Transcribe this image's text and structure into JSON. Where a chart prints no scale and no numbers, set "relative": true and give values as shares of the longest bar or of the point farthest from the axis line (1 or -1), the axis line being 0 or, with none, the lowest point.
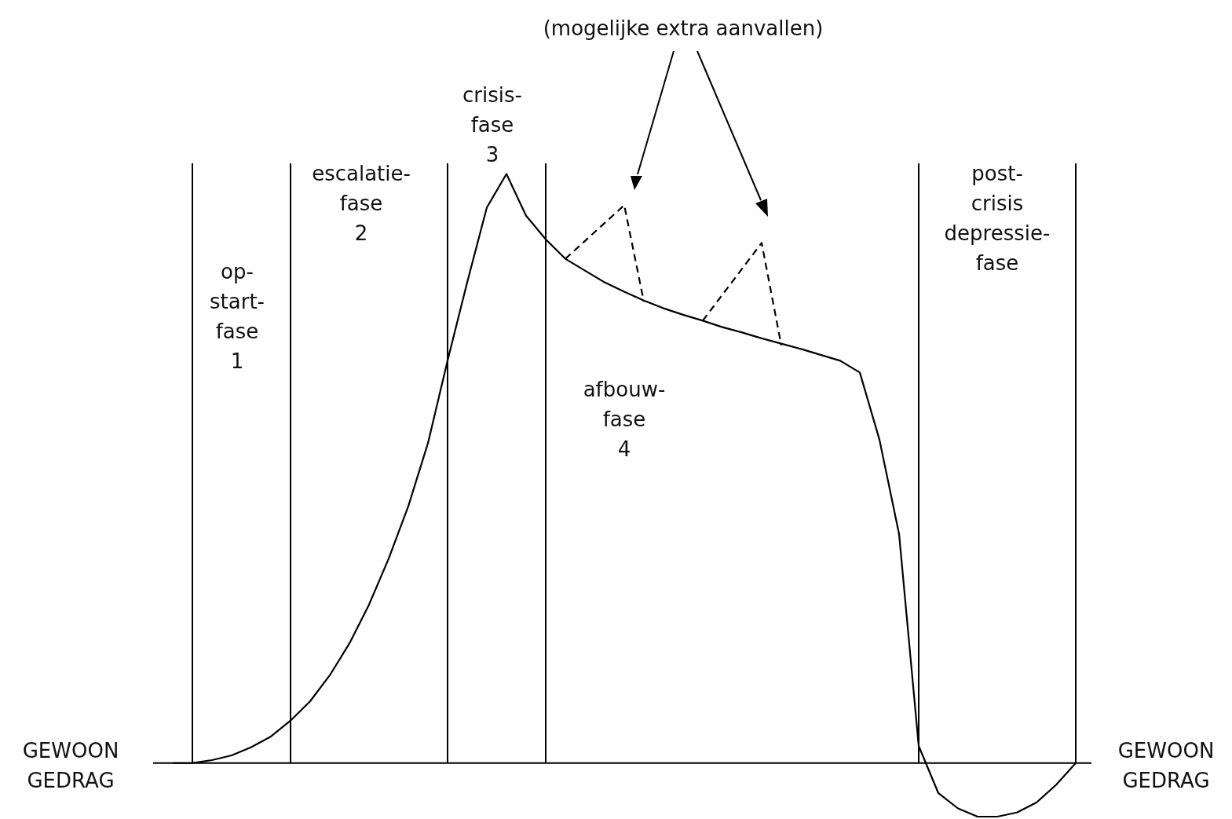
{
  "chart_data": {
    "type": "line",
    "relative": true,
    "categories": [
      null,
      null,
      null,
      null,
      null,
      null,
      null,
      null,
      null,
      null,
      null,
      null,
      null,
      null,
      null,
      null,
      null,
      null,
      null,
      null,
      null,
      null,
      null,
      null,
      null,
      null,
      null,
      null,
      null,
      null,
      null,
      null,
      null,
      null,
      null,
      null,
      null,
      null,
      null,
      null,
      null,
      null,
      null,
      null,
      null,
      null,
      null,
      null
    ],
    "series": [
      {
        "color": "#000000",
        "values": [
          null,
          0,
          0,
          0.005,
          0.013,
          0.027,
          0.045,
          0.072,
          0.105,
          0.149,
          0.203,
          0.269,
          0.347,
          0.436,
          0.543,
          0.683,
          0.816,
          0.943,
          1,
          0.929,
          0.889,
          0.856,
          0.836,
          0.816,
          0.8,
          0.785,
          0.772,
          0.761,
          0.751,
          0.74,
          0.731,
          0.721,
          0.712,
          0.703,
          0.693,
          0.683,
          0.663,
          0.549,
          0.389,
          0.029,
          -0.051,
          -0.077,
          -0.091,
          -0.091,
          -0.084,
          -0.067,
          -0.037,
          0
        ]
      },
      {
        "color": "#000000",
        "line_style": "dashed",
        "values": [
          null,
          null,
          null,
          null,
          null,
          null,
          null,
          null,
          null,
          null,
          null,
          null,
          null,
          null,
          null,
          null,
          null,
          null,
          null,
          null,
          null,
          0.856,
          null,
          null,
          0.947,
          0.783,
          null,
          null,
          null,
          null,
          null,
          null,
          null,
          null,
          null,
          null,
          null,
          null,
          null,
          null,
          null,
          null,
          null,
          null,
          null,
          null,
          null,
          null
        ]
      },
      {
        "color": "#000000",
        "line_style": "dashed",
        "values": [
          null,
          null,
          null,
          null,
          null,
          null,
          null,
          null,
          null,
          null,
          null,
          null,
          null,
          null,
          null,
          null,
          null,
          null,
          null,
          null,
          null,
          null,
          null,
          null,
          null,
          null,
          null,
          null,
          0.751,
          null,
          null,
          0.883,
          0.709,
          null,
          null,
          null,
          null,
          null,
          null,
          null,
          null,
          null,
          null,
          null,
          null,
          null,
          null,
          null
        ]
      }
    ],
    "annotations": [
      "(mogelijke extra aanvallen)",
      "op-\nstart-\nfase\n1",
      "escalatie-\nfase\n2",
      "crisis-\nfase\n3",
      "afbouw-\nfase\n4",
      "post-\ncrisis\ndepressie-\nfase",
      "GEWOON\nGEDRAG",
      "GEWOON\nGEDRAG"
    ],
    "legend": false,
    "grid": "x",
    "marker": "none",
    "tick_labels": false
  }
}
